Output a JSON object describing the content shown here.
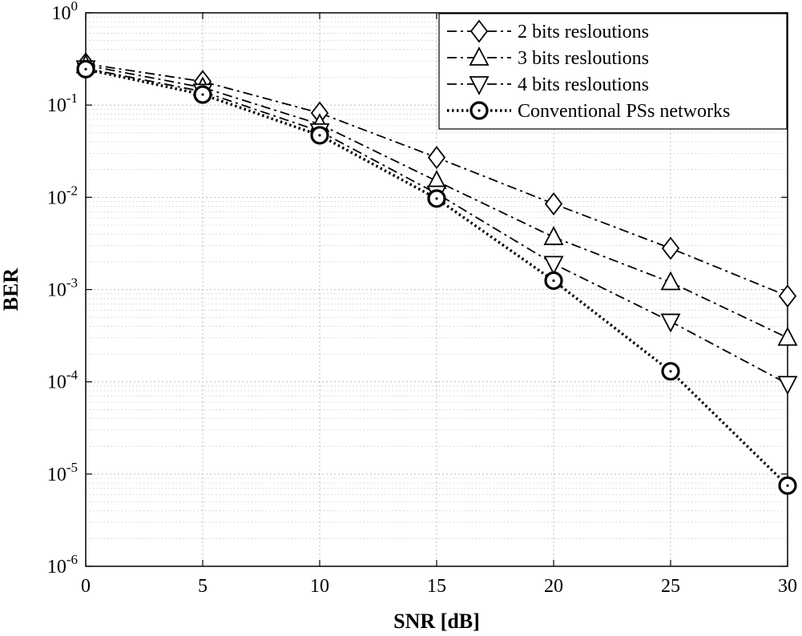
{
  "chart_data": {
    "type": "line",
    "title": "",
    "xlabel": "SNR [dB]",
    "ylabel": "BER",
    "x": [
      0,
      5,
      10,
      15,
      20,
      25,
      30
    ],
    "xlim": [
      0,
      30
    ],
    "ylim": [
      1e-06,
      1
    ],
    "yscale": "log",
    "x_ticks": [
      "0",
      "5",
      "10",
      "15",
      "20",
      "25",
      "30"
    ],
    "y_ticks": [
      {
        "base": "10",
        "exp": "0"
      },
      {
        "base": "10",
        "exp": "-1"
      },
      {
        "base": "10",
        "exp": "-2"
      },
      {
        "base": "10",
        "exp": "-3"
      },
      {
        "base": "10",
        "exp": "-4"
      },
      {
        "base": "10",
        "exp": "-5"
      },
      {
        "base": "10",
        "exp": "-6"
      }
    ],
    "grid": true,
    "legend_position": "top-right",
    "series": [
      {
        "name": "2 bits resloutions",
        "marker": "diamond",
        "line": "dashdot",
        "values": [
          0.28,
          0.18,
          0.082,
          0.027,
          0.0085,
          0.0028,
          0.00085
        ]
      },
      {
        "name": "3 bits resloutions",
        "marker": "triangle-up",
        "line": "dashdot",
        "values": [
          0.27,
          0.155,
          0.062,
          0.015,
          0.0037,
          0.0012,
          0.0003
        ]
      },
      {
        "name": "4 bits resloutions",
        "marker": "triangle-down",
        "line": "dashdot",
        "values": [
          0.25,
          0.14,
          0.052,
          0.011,
          0.0019,
          0.00045,
          9.5e-05
        ]
      },
      {
        "name": "Conventional PSs networks",
        "marker": "circle",
        "line": "dotted",
        "values": [
          0.245,
          0.13,
          0.047,
          0.0097,
          0.00125,
          0.00013,
          7.5e-06
        ]
      }
    ]
  }
}
